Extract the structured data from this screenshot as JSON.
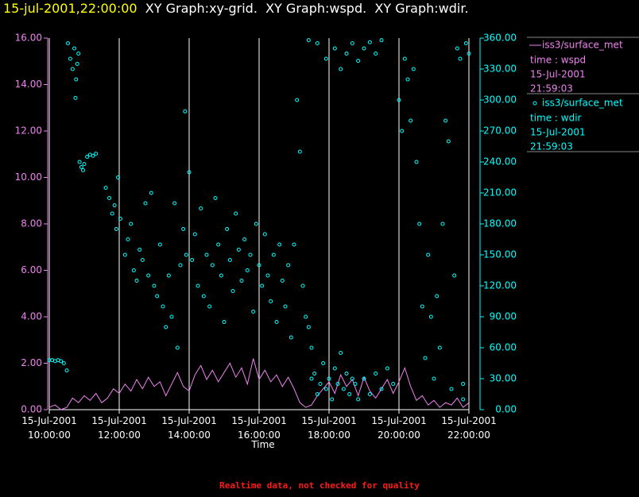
{
  "chart_data": {
    "type": "line_scatter",
    "title_timestamp": "15-jul-2001,22:00:00",
    "title": "XY Graph:xy-grid.  XY Graph:wspd.  XY Graph:wdir.",
    "x_label": "Time",
    "footer": "Realtime data, not checked for quality",
    "grid": true,
    "xlim": [
      600,
      1320
    ],
    "xticks": [
      {
        "value": 600,
        "label": "15-Jul-2001 10:00:00"
      },
      {
        "value": 720,
        "label": "15-Jul-2001 12:00:00"
      },
      {
        "value": 840,
        "label": "15-Jul-2001 14:00:00"
      },
      {
        "value": 960,
        "label": "15-Jul-2001 16:00:00"
      },
      {
        "value": 1080,
        "label": "15-Jul-2001 18:00:00"
      },
      {
        "value": 1200,
        "label": "15-Jul-2001 20:00:00"
      },
      {
        "value": 1320,
        "label": "15-Jul-2001 22:00:00"
      }
    ],
    "ylim": [
      0,
      16
    ],
    "yticks": [
      {
        "value": 0,
        "label": "0.00"
      },
      {
        "value": 2,
        "label": "2.00"
      },
      {
        "value": 4,
        "label": "4.00"
      },
      {
        "value": 6,
        "label": "6.00"
      },
      {
        "value": 8,
        "label": "8.00"
      },
      {
        "value": 10,
        "label": "10.00"
      },
      {
        "value": 12,
        "label": "12.00"
      },
      {
        "value": 14,
        "label": "14.00"
      },
      {
        "value": 16,
        "label": "16.00"
      }
    ],
    "y2lim": [
      0,
      360
    ],
    "y2ticks": [
      {
        "value": 0,
        "label": "0.00"
      },
      {
        "value": 30,
        "label": "30.00"
      },
      {
        "value": 60,
        "label": "60.00"
      },
      {
        "value": 90,
        "label": "90.00"
      },
      {
        "value": 120,
        "label": "120.00"
      },
      {
        "value": 150,
        "label": "150.00"
      },
      {
        "value": 180,
        "label": "180.00"
      },
      {
        "value": 210,
        "label": "210.00"
      },
      {
        "value": 240,
        "label": "240.00"
      },
      {
        "value": 270,
        "label": "270.00"
      },
      {
        "value": 300,
        "label": "300.00"
      },
      {
        "value": 330,
        "label": "330.00"
      },
      {
        "value": 360,
        "label": "360.00"
      }
    ],
    "series": [
      {
        "name": "iss3/surface_met",
        "label_lines": [
          "time : wspd",
          "15-Jul-2001",
          "21:59:03"
        ],
        "color": "#ee82ee",
        "axis": "y",
        "marker": "line",
        "x": [
          600,
          610,
          620,
          630,
          640,
          650,
          660,
          670,
          680,
          690,
          700,
          710,
          720,
          730,
          740,
          750,
          760,
          770,
          780,
          790,
          800,
          810,
          820,
          830,
          840,
          850,
          860,
          870,
          880,
          890,
          900,
          910,
          920,
          930,
          940,
          950,
          960,
          970,
          980,
          990,
          1000,
          1010,
          1020,
          1030,
          1040,
          1050,
          1060,
          1070,
          1080,
          1090,
          1100,
          1110,
          1120,
          1130,
          1140,
          1150,
          1160,
          1170,
          1180,
          1190,
          1200,
          1210,
          1220,
          1230,
          1240,
          1250,
          1260,
          1270,
          1280,
          1290,
          1300,
          1310,
          1320
        ],
        "values": [
          0.1,
          0.2,
          0.0,
          0.1,
          0.5,
          0.3,
          0.6,
          0.4,
          0.7,
          0.3,
          0.5,
          0.9,
          0.7,
          1.1,
          0.8,
          1.3,
          0.9,
          1.4,
          1.0,
          1.2,
          0.6,
          1.1,
          1.6,
          1.0,
          0.8,
          1.5,
          1.9,
          1.3,
          1.7,
          1.2,
          1.6,
          2.0,
          1.4,
          1.8,
          1.1,
          2.2,
          1.3,
          1.7,
          1.2,
          1.5,
          1.0,
          1.4,
          0.9,
          0.3,
          0.1,
          0.2,
          0.6,
          0.9,
          1.2,
          0.7,
          1.5,
          1.0,
          1.3,
          0.6,
          1.4,
          0.8,
          0.5,
          0.9,
          1.3,
          0.7,
          1.2,
          1.8,
          1.0,
          0.4,
          0.6,
          0.2,
          0.4,
          0.1,
          0.3,
          0.2,
          0.5,
          0.1,
          0.3
        ]
      },
      {
        "name": "iss3/surface_met",
        "label_lines": [
          "time : wdir",
          "15-Jul-2001",
          "21:59:03"
        ],
        "color": "#00ffff",
        "axis": "y2",
        "marker": "circle",
        "x": [
          600,
          605,
          610,
          615,
          620,
          625,
          630,
          632,
          636,
          640,
          643,
          646,
          648,
          650,
          645,
          652,
          655,
          658,
          660,
          665,
          670,
          675,
          680,
          697,
          703,
          708,
          712,
          715,
          718,
          722,
          730,
          735,
          740,
          745,
          750,
          755,
          760,
          765,
          770,
          775,
          780,
          785,
          790,
          795,
          800,
          805,
          810,
          815,
          820,
          825,
          830,
          833,
          835,
          840,
          845,
          850,
          855,
          860,
          865,
          870,
          875,
          880,
          885,
          890,
          895,
          900,
          905,
          910,
          915,
          920,
          925,
          930,
          935,
          940,
          945,
          950,
          955,
          960,
          965,
          970,
          975,
          980,
          985,
          990,
          995,
          1000,
          1005,
          1010,
          1015,
          1020,
          1025,
          1030,
          1035,
          1040,
          1045,
          1050,
          1050,
          1055,
          1060,
          1065,
          1070,
          1075,
          1080,
          1085,
          1090,
          1095,
          1100,
          1105,
          1110,
          1115,
          1120,
          1045,
          1060,
          1075,
          1090,
          1100,
          1110,
          1120,
          1130,
          1140,
          1150,
          1160,
          1170,
          1125,
          1130,
          1140,
          1150,
          1160,
          1170,
          1180,
          1190,
          1200,
          1205,
          1210,
          1215,
          1220,
          1225,
          1230,
          1235,
          1240,
          1245,
          1250,
          1255,
          1260,
          1265,
          1270,
          1275,
          1280,
          1285,
          1290,
          1295,
          1300,
          1305,
          1310,
          1315,
          1320,
          1310
        ],
        "values": [
          48,
          48,
          47,
          48,
          47,
          45,
          38,
          355,
          340,
          330,
          350,
          320,
          335,
          345,
          302,
          240,
          235,
          232,
          238,
          245,
          247,
          246,
          248,
          215,
          205,
          190,
          198,
          175,
          225,
          185,
          150,
          165,
          180,
          135,
          125,
          155,
          145,
          200,
          130,
          210,
          120,
          110,
          160,
          100,
          80,
          130,
          90,
          200,
          60,
          140,
          175,
          289,
          150,
          230,
          145,
          170,
          120,
          195,
          110,
          150,
          100,
          140,
          205,
          160,
          130,
          85,
          175,
          145,
          115,
          190,
          155,
          125,
          165,
          135,
          150,
          95,
          180,
          140,
          120,
          170,
          130,
          105,
          150,
          85,
          160,
          125,
          100,
          140,
          70,
          160,
          300,
          250,
          120,
          90,
          80,
          60,
          30,
          35,
          15,
          25,
          45,
          20,
          30,
          10,
          40,
          25,
          55,
          20,
          35,
          15,
          30,
          358,
          355,
          340,
          350,
          330,
          345,
          355,
          338,
          350,
          356,
          345,
          358,
          25,
          10,
          30,
          15,
          35,
          20,
          40,
          25,
          300,
          270,
          340,
          320,
          280,
          330,
          240,
          180,
          100,
          50,
          150,
          90,
          30,
          110,
          60,
          180,
          280,
          260,
          20,
          130,
          350,
          340,
          10,
          355,
          345,
          25
        ]
      }
    ]
  }
}
